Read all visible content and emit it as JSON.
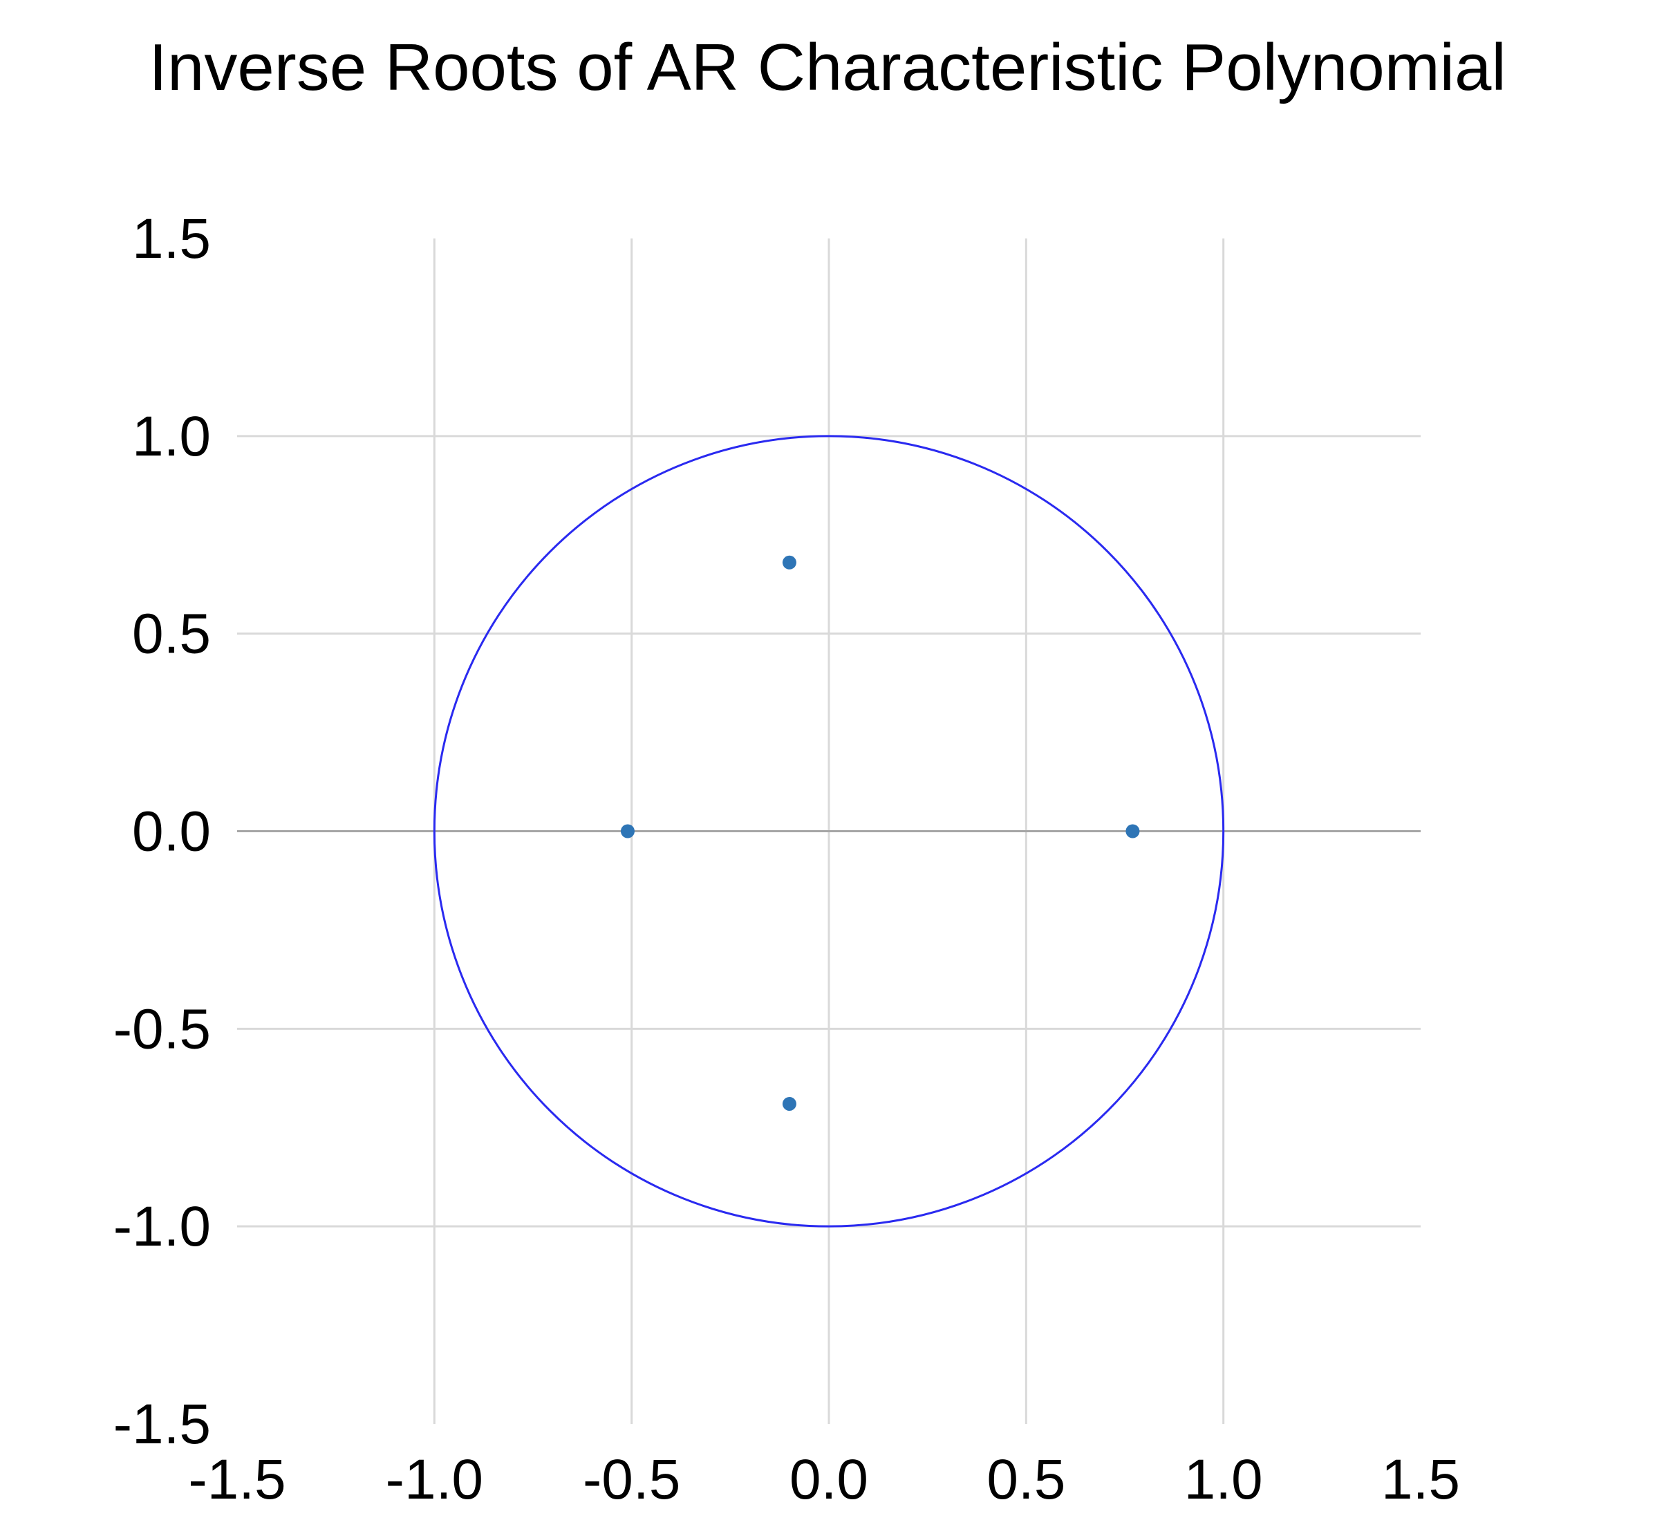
{
  "chart_data": {
    "type": "scatter",
    "title": "Inverse Roots of AR Characteristic Polynomial",
    "xlabel": "",
    "ylabel": "",
    "xlim": [
      -1.5,
      1.5
    ],
    "ylim": [
      -1.5,
      1.5
    ],
    "x_ticks": [
      -1.5,
      -1.0,
      -0.5,
      0.0,
      0.5,
      1.0,
      1.5
    ],
    "y_ticks": [
      -1.5,
      -1.0,
      -0.5,
      0.0,
      0.5,
      1.0,
      1.5
    ],
    "x_tick_labels": [
      "-1.5",
      "-1.0",
      "-0.5",
      "0.0",
      "0.5",
      "1.0",
      "1.5"
    ],
    "y_tick_labels": [
      "-1.5",
      "-1.0",
      "-0.5",
      "0.0",
      "0.5",
      "1.0",
      "1.5"
    ],
    "grid": true,
    "points": [
      {
        "x": -0.1,
        "y": 0.68
      },
      {
        "x": -0.51,
        "y": 0.0
      },
      {
        "x": 0.77,
        "y": 0.0
      },
      {
        "x": -0.1,
        "y": -0.69
      }
    ],
    "unit_circle": {
      "radius": 1.0
    },
    "colors": {
      "points": "#2E75B6",
      "circle": "#2A2AF0",
      "grid": "#D9D9D9",
      "zero_axis": "#A6A6A6",
      "text": "#000000"
    }
  }
}
